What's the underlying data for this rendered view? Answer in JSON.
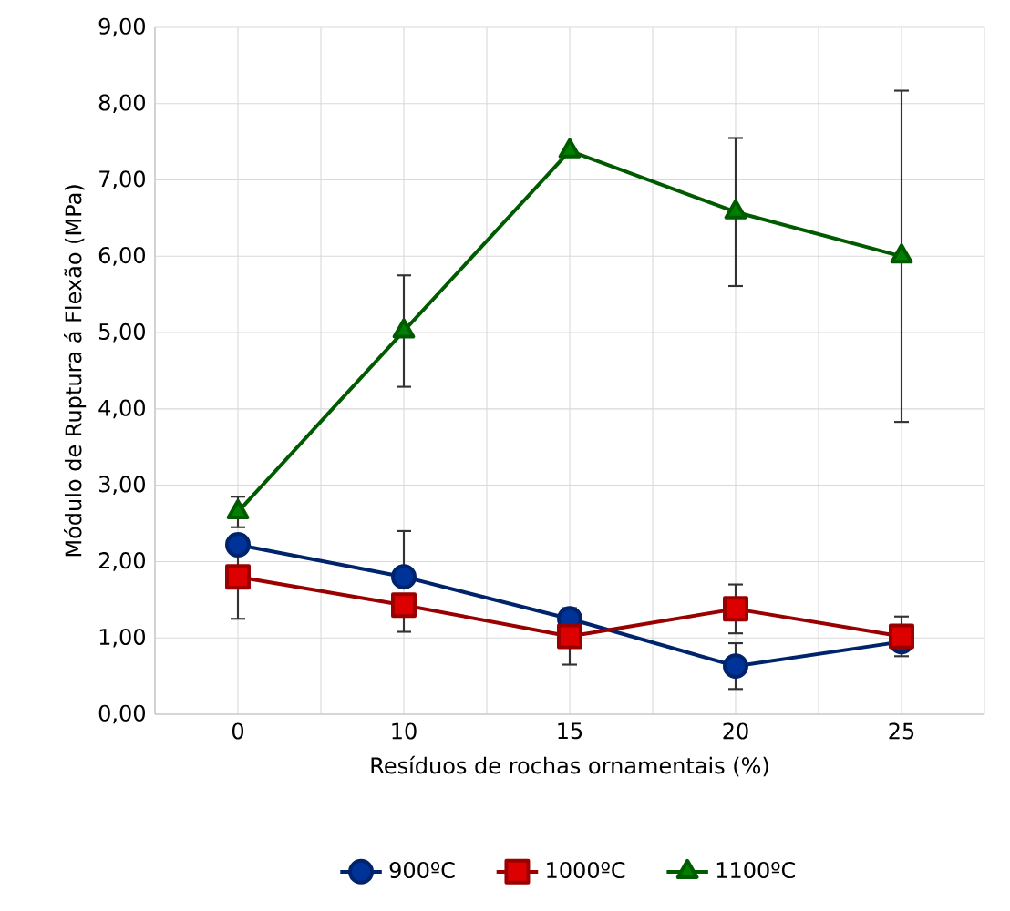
{
  "chart_data": {
    "type": "line",
    "xlabel": "Resíduos de rochas ornamentais (%)",
    "ylabel": "Módulo de Ruptura á Flexão (MPa)",
    "categories": [
      "0",
      "10",
      "15",
      "20",
      "25"
    ],
    "ylim": [
      0,
      9
    ],
    "yticks": [
      {
        "value": 0,
        "label": "0,00"
      },
      {
        "value": 1,
        "label": "1,00"
      },
      {
        "value": 2,
        "label": "2,00"
      },
      {
        "value": 3,
        "label": "3,00"
      },
      {
        "value": 4,
        "label": "4,00"
      },
      {
        "value": 5,
        "label": "5,00"
      },
      {
        "value": 6,
        "label": "6,00"
      },
      {
        "value": 7,
        "label": "7,00"
      },
      {
        "value": 8,
        "label": "8,00"
      },
      {
        "value": 9,
        "label": "9,00"
      }
    ],
    "grid": true,
    "legend": "bottom",
    "line_style": "solid",
    "series": [
      {
        "name": "900ºC",
        "color": "#003399",
        "marker": "circle",
        "values": [
          2.22,
          1.8,
          1.25,
          0.63,
          0.95
        ],
        "errors": [
          null,
          [
            1.8,
            2.4
          ],
          null,
          0.3,
          null
        ]
      },
      {
        "name": "1000ºC",
        "color": "#dd0000",
        "marker": "square",
        "values": [
          1.8,
          1.43,
          1.02,
          1.38,
          1.02
        ],
        "errors": [
          0.55,
          [
            1.08,
            1.43
          ],
          0.37,
          0.32,
          0.26
        ]
      },
      {
        "name": "1100ºC",
        "color": "#008000",
        "marker": "triangle",
        "values": [
          2.65,
          5.02,
          7.38,
          6.58,
          6.0
        ],
        "errors": [
          0.2,
          0.73,
          null,
          0.97,
          2.17
        ]
      }
    ]
  }
}
